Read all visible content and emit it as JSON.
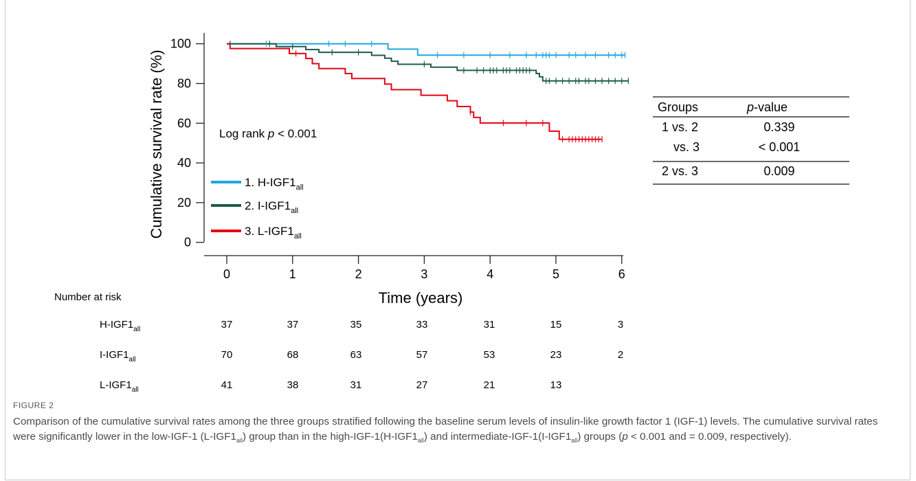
{
  "chart_data": {
    "type": "line",
    "chart_kind": "kaplan-meier",
    "xlabel": "Time (years)",
    "ylabel": "Cumulative survival rate (%)",
    "xlim": [
      0,
      6.1
    ],
    "ylim": [
      0,
      100
    ],
    "xticks": [
      0,
      1,
      2,
      3,
      4,
      5,
      6
    ],
    "yticks": [
      0,
      20,
      40,
      60,
      80,
      100
    ],
    "annotation": {
      "prefix": "Log rank ",
      "p": "p",
      "suffix": " < 0.001"
    },
    "legend_placement": "lower-left",
    "series": [
      {
        "name": "1. H-IGF1",
        "subscript": "all",
        "color": "#1ea7e1",
        "steps": [
          [
            0,
            100
          ],
          [
            2.45,
            100
          ],
          [
            2.45,
            97.3
          ],
          [
            2.9,
            97.3
          ],
          [
            2.9,
            94.3
          ],
          [
            6.05,
            94.3
          ]
        ],
        "censors": [
          [
            0.6,
            100
          ],
          [
            1.55,
            100
          ],
          [
            1.8,
            100
          ],
          [
            2.2,
            100
          ],
          [
            3.2,
            94.3
          ],
          [
            3.6,
            94.3
          ],
          [
            4.0,
            94.3
          ],
          [
            4.3,
            94.3
          ],
          [
            4.55,
            94.3
          ],
          [
            4.7,
            94.3
          ],
          [
            4.8,
            94.3
          ],
          [
            4.85,
            94.3
          ],
          [
            4.9,
            94.3
          ],
          [
            5.0,
            94.3
          ],
          [
            5.2,
            94.3
          ],
          [
            5.3,
            94.3
          ],
          [
            5.45,
            94.3
          ],
          [
            5.6,
            94.3
          ],
          [
            5.8,
            94.3
          ],
          [
            5.9,
            94.3
          ],
          [
            6.0,
            94.3
          ],
          [
            6.05,
            94.3
          ]
        ]
      },
      {
        "name": "2. I-IGF1",
        "subscript": "all",
        "color": "#1d5c4a",
        "steps": [
          [
            0,
            100
          ],
          [
            0.75,
            100
          ],
          [
            0.75,
            98.6
          ],
          [
            1.2,
            98.6
          ],
          [
            1.2,
            97.1
          ],
          [
            1.4,
            97.1
          ],
          [
            1.4,
            95.7
          ],
          [
            2.2,
            95.7
          ],
          [
            2.2,
            94.2
          ],
          [
            2.4,
            94.2
          ],
          [
            2.4,
            92.7
          ],
          [
            2.5,
            92.7
          ],
          [
            2.5,
            91.2
          ],
          [
            2.6,
            91.2
          ],
          [
            2.6,
            89.7
          ],
          [
            3.1,
            89.7
          ],
          [
            3.1,
            88.2
          ],
          [
            3.5,
            88.2
          ],
          [
            3.5,
            86.6
          ],
          [
            4.7,
            86.6
          ],
          [
            4.7,
            85.0
          ],
          [
            4.75,
            85.0
          ],
          [
            4.75,
            83.4
          ],
          [
            4.8,
            83.4
          ],
          [
            4.8,
            81.3
          ],
          [
            6.1,
            81.3
          ]
        ],
        "censors": [
          [
            0.05,
            100
          ],
          [
            0.65,
            100
          ],
          [
            1.0,
            98.6
          ],
          [
            1.6,
            95.7
          ],
          [
            2.0,
            95.7
          ],
          [
            3.0,
            89.7
          ],
          [
            3.6,
            86.6
          ],
          [
            3.8,
            86.6
          ],
          [
            3.9,
            86.6
          ],
          [
            4.0,
            86.6
          ],
          [
            4.05,
            86.6
          ],
          [
            4.1,
            86.6
          ],
          [
            4.2,
            86.6
          ],
          [
            4.25,
            86.6
          ],
          [
            4.3,
            86.6
          ],
          [
            4.4,
            86.6
          ],
          [
            4.45,
            86.6
          ],
          [
            4.5,
            86.6
          ],
          [
            4.55,
            86.6
          ],
          [
            4.6,
            86.6
          ],
          [
            4.85,
            81.3
          ],
          [
            4.9,
            81.3
          ],
          [
            5.0,
            81.3
          ],
          [
            5.1,
            81.3
          ],
          [
            5.2,
            81.3
          ],
          [
            5.3,
            81.3
          ],
          [
            5.35,
            81.3
          ],
          [
            5.45,
            81.3
          ],
          [
            5.5,
            81.3
          ],
          [
            5.6,
            81.3
          ],
          [
            5.7,
            81.3
          ],
          [
            5.8,
            81.3
          ],
          [
            5.9,
            81.3
          ],
          [
            6.0,
            81.3
          ],
          [
            6.1,
            81.3
          ]
        ]
      },
      {
        "name": "3. L-IGF1",
        "subscript": "all",
        "color": "#e30613",
        "steps": [
          [
            0,
            100
          ],
          [
            0.05,
            100
          ],
          [
            0.05,
            97.6
          ],
          [
            0.95,
            97.6
          ],
          [
            0.95,
            95.1
          ],
          [
            1.2,
            95.1
          ],
          [
            1.2,
            92.6
          ],
          [
            1.3,
            92.6
          ],
          [
            1.3,
            90.0
          ],
          [
            1.4,
            90.0
          ],
          [
            1.4,
            87.5
          ],
          [
            1.8,
            87.5
          ],
          [
            1.8,
            85.0
          ],
          [
            1.9,
            85.0
          ],
          [
            1.9,
            82.5
          ],
          [
            2.4,
            82.5
          ],
          [
            2.4,
            79.7
          ],
          [
            2.5,
            79.7
          ],
          [
            2.5,
            76.9
          ],
          [
            2.95,
            76.9
          ],
          [
            2.95,
            74.1
          ],
          [
            3.35,
            74.1
          ],
          [
            3.35,
            71.3
          ],
          [
            3.5,
            71.3
          ],
          [
            3.5,
            68.4
          ],
          [
            3.7,
            68.4
          ],
          [
            3.7,
            65.6
          ],
          [
            3.75,
            65.6
          ],
          [
            3.75,
            62.9
          ],
          [
            3.85,
            62.9
          ],
          [
            3.85,
            60.1
          ],
          [
            4.9,
            60.1
          ],
          [
            4.9,
            56.0
          ],
          [
            5.05,
            56.0
          ],
          [
            5.05,
            51.9
          ],
          [
            5.7,
            51.9
          ]
        ],
        "censors": [
          [
            1.05,
            95.1
          ],
          [
            3.7,
            65.6
          ],
          [
            4.2,
            60.1
          ],
          [
            4.55,
            60.1
          ],
          [
            4.8,
            60.1
          ],
          [
            5.1,
            51.9
          ],
          [
            5.2,
            51.9
          ],
          [
            5.25,
            51.9
          ],
          [
            5.3,
            51.9
          ],
          [
            5.35,
            51.9
          ],
          [
            5.4,
            51.9
          ],
          [
            5.45,
            51.9
          ],
          [
            5.5,
            51.9
          ],
          [
            5.55,
            51.9
          ],
          [
            5.6,
            51.9
          ],
          [
            5.65,
            51.9
          ],
          [
            5.7,
            51.9
          ]
        ]
      }
    ],
    "pvalue_table": {
      "header": [
        "Groups",
        "p",
        "-value"
      ],
      "rows": [
        [
          "1 vs. 2",
          "0.339"
        ],
        [
          "vs. 3",
          "< 0.001"
        ],
        [
          "2 vs. 3",
          "0.009"
        ]
      ]
    },
    "risk_table": {
      "title": "Number at risk",
      "times": [
        0,
        1,
        2,
        3,
        4,
        5,
        6
      ],
      "rows": [
        {
          "label": "H-IGF1",
          "sub": "all",
          "values": [
            "37",
            "37",
            "35",
            "33",
            "31",
            "15",
            "3"
          ]
        },
        {
          "label": "I-IGF1",
          "sub": "all",
          "values": [
            "70",
            "68",
            "63",
            "57",
            "53",
            "23",
            "2"
          ]
        },
        {
          "label": "L-IGF1",
          "sub": "all",
          "values": [
            "41",
            "38",
            "31",
            "27",
            "21",
            "13",
            ""
          ]
        }
      ]
    }
  },
  "caption": {
    "label": "FIGURE 2",
    "text": "Comparison of the cumulative survival rates among the three groups stratified following the baseline serum levels of insulin-like growth factor 1 (IGF-1) levels. The cumulative survival rates were significantly lower in the low-IGF-1 (L-IGF1all) group than in the high-IGF-1(H-IGF1all) and intermediate-IGF-1(I-IGF1all) groups (p < 0.001 and = 0.009, respectively)."
  }
}
